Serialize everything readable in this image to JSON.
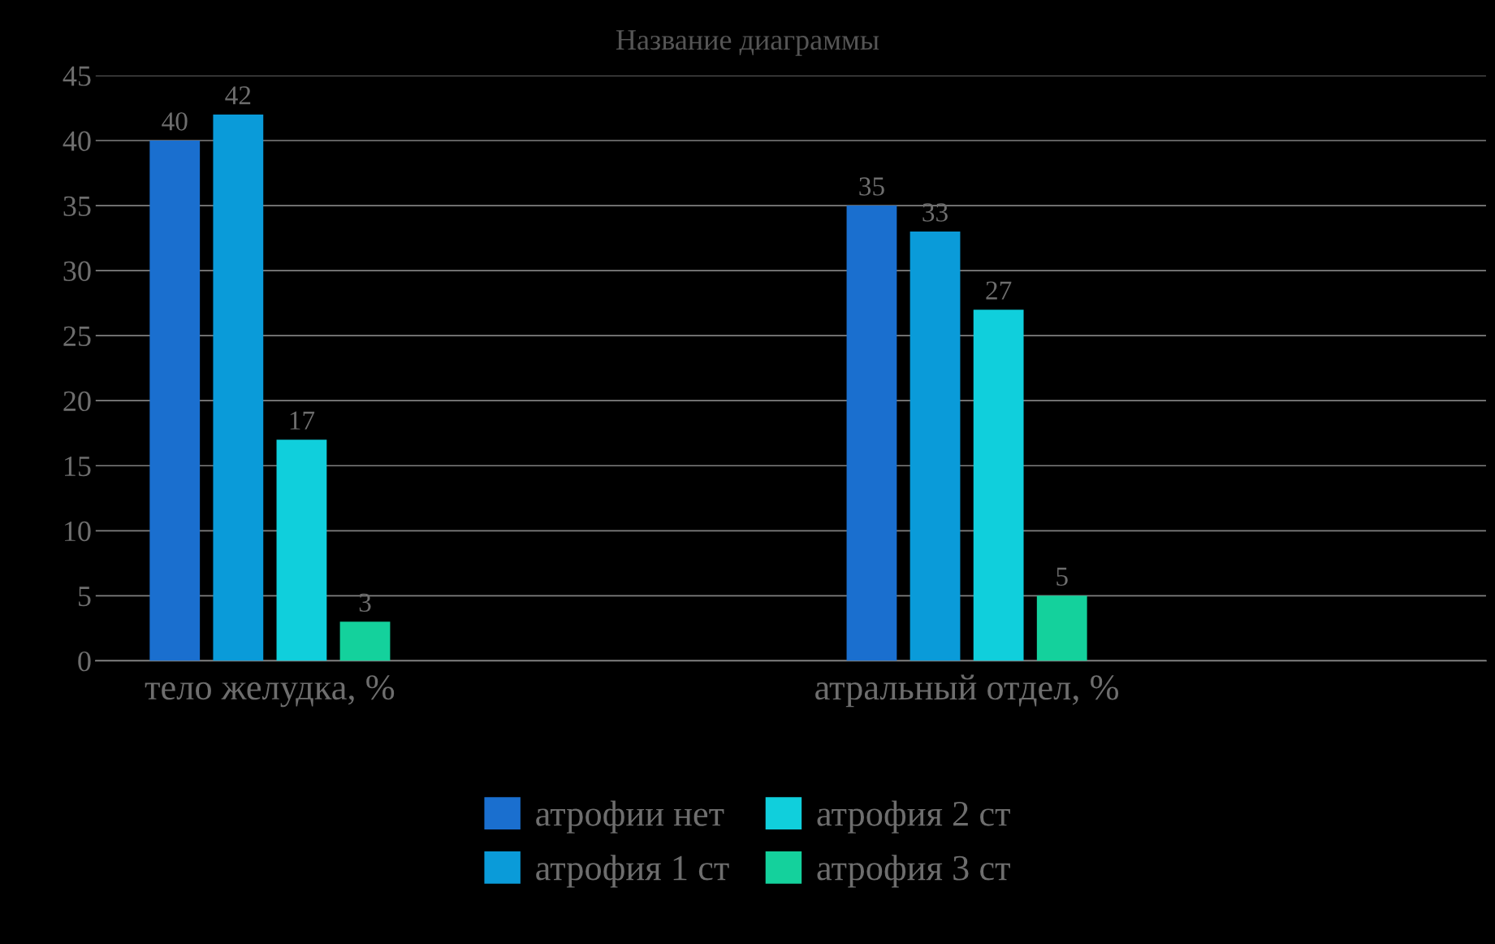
{
  "chart_data": {
    "type": "bar",
    "title": "Название диаграммы",
    "categories": [
      "тело желудка, %",
      "атральный отдел, %"
    ],
    "series": [
      {
        "name": "атрофии нет",
        "color": "#1a6fcf",
        "values": [
          40,
          35
        ]
      },
      {
        "name": "атрофия 1 ст",
        "color": "#0a9bd9",
        "values": [
          42,
          33
        ]
      },
      {
        "name": "атрофия 2 ст",
        "color": "#10cfdc",
        "values": [
          17,
          27
        ]
      },
      {
        "name": "атрофия 3 ст",
        "color": "#14d19c",
        "values": [
          3,
          5
        ]
      }
    ],
    "ylim": [
      0,
      45
    ],
    "yticks": [
      0,
      5,
      10,
      15,
      20,
      25,
      30,
      35,
      40,
      45
    ],
    "grid": "y",
    "data_labels": true,
    "legend": "bottom"
  }
}
